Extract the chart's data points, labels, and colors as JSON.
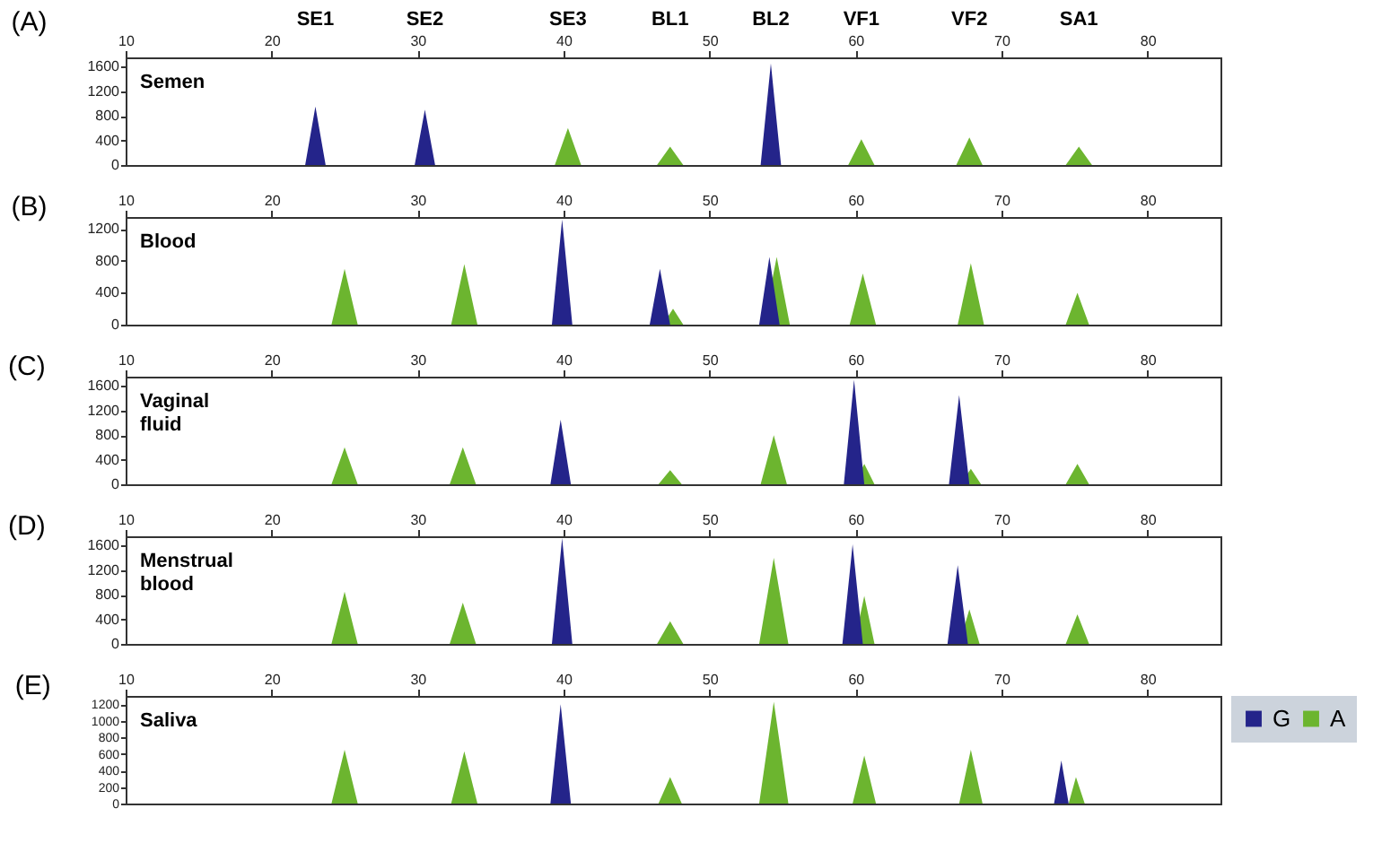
{
  "chart_data": [
    {
      "type": "area",
      "title": "(A)",
      "annotations": [
        "Semen",
        "SE1",
        "SE2",
        "SE3",
        "BL1",
        "BL2",
        "VF1",
        "VF2",
        "SA1"
      ],
      "xlim": [
        10,
        85
      ],
      "xticks": [
        10,
        20,
        30,
        40,
        50,
        60,
        70,
        80
      ],
      "ylim": [
        0,
        1750
      ],
      "yticks": [
        0,
        400,
        800,
        1200,
        1600
      ],
      "series": [
        {
          "color": "#6cb52f",
          "x": [
            10,
            39.4,
            40.3,
            41.2,
            46.4,
            47.3,
            48.2,
            59.5,
            60.4,
            61.3,
            66.9,
            67.8,
            68.7,
            74.4,
            75.3,
            76.2,
            85
          ],
          "values": [
            0,
            0,
            600,
            0,
            0,
            300,
            0,
            0,
            420,
            0,
            0,
            450,
            0,
            0,
            300,
            0,
            0
          ]
        },
        {
          "color": "#24248a",
          "x": [
            10,
            22.3,
            23,
            23.7,
            29.8,
            30.5,
            31.2,
            53.5,
            54.2,
            54.9,
            85
          ],
          "values": [
            0,
            0,
            950,
            0,
            0,
            900,
            0,
            0,
            1650,
            0,
            0
          ]
        }
      ]
    },
    {
      "type": "area",
      "title": "(B)",
      "annotations": [
        "Blood"
      ],
      "xlim": [
        10,
        85
      ],
      "xticks": [
        10,
        20,
        30,
        40,
        50,
        60,
        70,
        80
      ],
      "ylim": [
        0,
        1350
      ],
      "yticks": [
        0,
        400,
        800,
        1200
      ],
      "series": [
        {
          "color": "#6cb52f",
          "x": [
            10,
            24.1,
            25,
            25.9,
            32.3,
            33.2,
            34.1,
            46.8,
            47.5,
            48.2,
            53.7,
            54.6,
            55.5,
            59.6,
            60.5,
            61.4,
            67,
            67.9,
            68.8,
            74.4,
            75.2,
            76,
            85
          ],
          "values": [
            0,
            0,
            700,
            0,
            0,
            760,
            0,
            0,
            200,
            0,
            0,
            850,
            0,
            0,
            640,
            0,
            0,
            770,
            0,
            0,
            400,
            0,
            0
          ]
        },
        {
          "color": "#24248a",
          "x": [
            10,
            39.2,
            39.9,
            40.6,
            45.9,
            46.6,
            47.3,
            53.4,
            54.1,
            54.8,
            85
          ],
          "values": [
            0,
            0,
            1320,
            0,
            0,
            700,
            0,
            0,
            850,
            0,
            0
          ]
        }
      ]
    },
    {
      "type": "area",
      "title": "(C)",
      "annotations": [
        "Vaginal fluid"
      ],
      "xlim": [
        10,
        85
      ],
      "xticks": [
        10,
        20,
        30,
        40,
        50,
        60,
        70,
        80
      ],
      "ylim": [
        0,
        1750
      ],
      "yticks": [
        0,
        400,
        800,
        1200,
        1600
      ],
      "series": [
        {
          "color": "#6cb52f",
          "x": [
            10,
            24.1,
            25,
            25.9,
            32.2,
            33.1,
            34,
            46.5,
            47.3,
            48.1,
            53.5,
            54.4,
            55.3,
            59.9,
            60.6,
            61.3,
            67.2,
            67.9,
            68.6,
            74.4,
            75.2,
            76,
            85
          ],
          "values": [
            0,
            0,
            600,
            0,
            0,
            600,
            0,
            0,
            230,
            0,
            0,
            800,
            0,
            0,
            330,
            0,
            0,
            250,
            0,
            0,
            330,
            0,
            0
          ]
        },
        {
          "color": "#24248a",
          "x": [
            10,
            39.1,
            39.8,
            40.5,
            59.2,
            59.9,
            60.6,
            66.4,
            67.1,
            67.8,
            85
          ],
          "values": [
            0,
            0,
            1050,
            0,
            0,
            1700,
            0,
            0,
            1450,
            0,
            0
          ]
        }
      ]
    },
    {
      "type": "area",
      "title": "(D)",
      "annotations": [
        "Menstrual blood"
      ],
      "xlim": [
        10,
        85
      ],
      "xticks": [
        10,
        20,
        30,
        40,
        50,
        60,
        70,
        80
      ],
      "ylim": [
        0,
        1750
      ],
      "yticks": [
        0,
        400,
        800,
        1200,
        1600
      ],
      "series": [
        {
          "color": "#6cb52f",
          "x": [
            10,
            24.1,
            25,
            25.9,
            32.2,
            33.1,
            34,
            46.4,
            47.3,
            48.2,
            53.4,
            54.4,
            55.4,
            59.9,
            60.6,
            61.3,
            67.1,
            67.8,
            68.5,
            74.4,
            75.2,
            76,
            85
          ],
          "values": [
            0,
            0,
            850,
            0,
            0,
            670,
            0,
            0,
            370,
            0,
            0,
            1400,
            0,
            0,
            780,
            0,
            0,
            560,
            0,
            0,
            480,
            0,
            0
          ]
        },
        {
          "color": "#24248a",
          "x": [
            10,
            39.2,
            39.9,
            40.6,
            59.1,
            59.8,
            60.5,
            66.3,
            67,
            67.7,
            85
          ],
          "values": [
            0,
            0,
            1720,
            0,
            0,
            1620,
            0,
            0,
            1280,
            0,
            0
          ]
        }
      ]
    },
    {
      "type": "area",
      "title": "(E)",
      "annotations": [
        "Saliva"
      ],
      "xlim": [
        10,
        85
      ],
      "xticks": [
        10,
        20,
        30,
        40,
        50,
        60,
        70,
        80
      ],
      "ylim": [
        0,
        1300
      ],
      "yticks": [
        0,
        200,
        400,
        600,
        800,
        1000,
        1200
      ],
      "legend": "right",
      "series": [
        {
          "name": "G",
          "color": "#24248a",
          "x": [
            10,
            39.1,
            39.8,
            40.5,
            73.6,
            74.1,
            74.6,
            85
          ],
          "values": [
            0,
            0,
            1200,
            0,
            0,
            520,
            0,
            0
          ]
        },
        {
          "name": "A",
          "color": "#6cb52f",
          "x": [
            10,
            24.1,
            25,
            25.9,
            32.3,
            33.2,
            34.1,
            46.5,
            47.3,
            48.1,
            53.4,
            54.4,
            55.4,
            59.8,
            60.6,
            61.4,
            67.1,
            67.9,
            68.7,
            74.6,
            75.1,
            75.7,
            85
          ],
          "values": [
            0,
            0,
            650,
            0,
            0,
            630,
            0,
            0,
            320,
            0,
            0,
            1230,
            0,
            0,
            580,
            0,
            0,
            650,
            0,
            0,
            320,
            0,
            0
          ]
        }
      ]
    }
  ]
}
